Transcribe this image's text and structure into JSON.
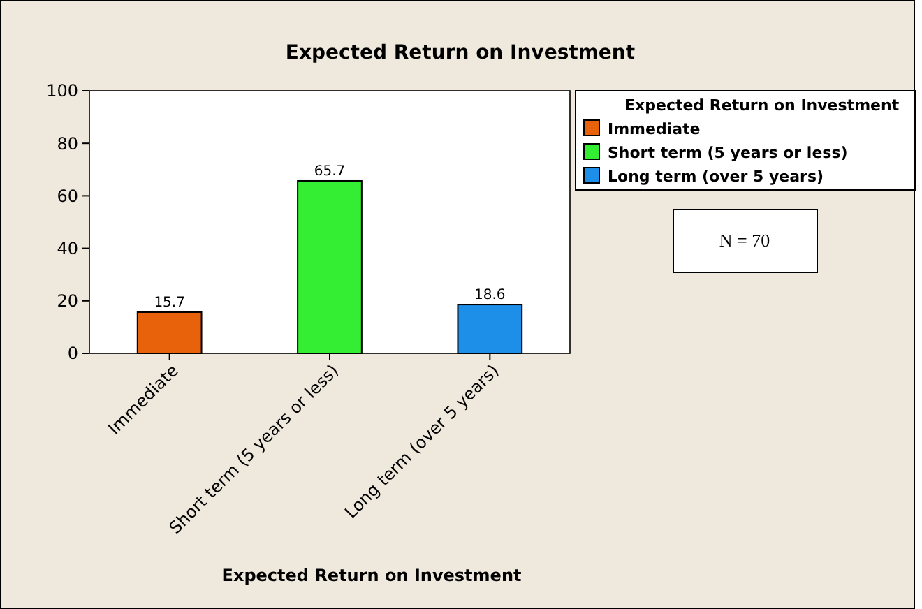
{
  "chart_data": {
    "type": "bar",
    "title": "Expected Return on Investment",
    "xlabel": "Expected Return on Investment",
    "legend_title": "Expected Return on Investment",
    "categories": [
      "Immediate",
      "Short term (5 years or less)",
      "Long term (over 5 years)"
    ],
    "stacked": true,
    "series": [
      {
        "name": "Immediate",
        "color": "#e8620c",
        "values": [
          15.7,
          null,
          null
        ]
      },
      {
        "name": "Short term (5 years or less)",
        "color": "#33ee33",
        "values": [
          null,
          65.7,
          null
        ]
      },
      {
        "name": "Long term (over 5 years)",
        "color": "#1e8fe8",
        "values": [
          null,
          null,
          18.6
        ]
      }
    ],
    "ylim": [
      0,
      100
    ],
    "yticks": [
      0,
      20,
      40,
      60,
      80,
      100
    ],
    "data_labels": true,
    "legend": "top right",
    "grid": false,
    "annotations": [
      "N = 70"
    ]
  }
}
